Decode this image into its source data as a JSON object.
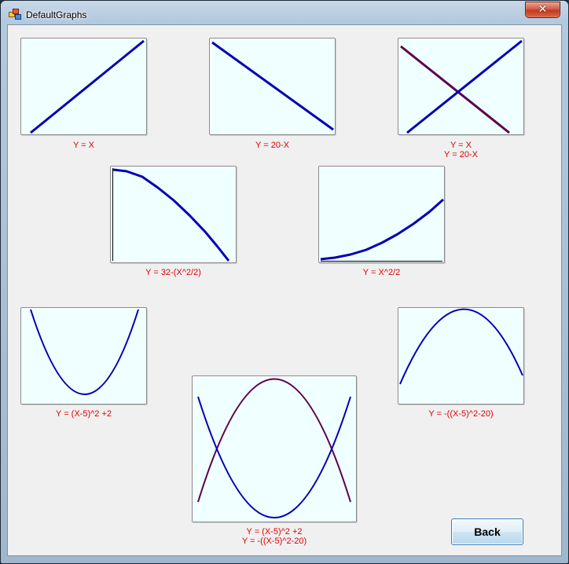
{
  "window": {
    "title": "DefaultGraphs",
    "close_symbol": "✕"
  },
  "colors": {
    "line_blue": "#0000b4",
    "line_purple": "#5a0050",
    "caption_red": "#e00000",
    "graph_bg": "#f0ffff"
  },
  "graphs": [
    {
      "id": "g1",
      "caption": [
        "Y = X"
      ]
    },
    {
      "id": "g2",
      "caption": [
        "Y = 20-X"
      ]
    },
    {
      "id": "g3",
      "caption": [
        "Y = X",
        "Y = 20-X"
      ]
    },
    {
      "id": "g4",
      "caption": [
        "Y = 32-(X^2/2)"
      ]
    },
    {
      "id": "g5",
      "caption": [
        "Y = X^2/2"
      ]
    },
    {
      "id": "g6",
      "caption": [
        "Y = (X-5)^2 +2"
      ]
    },
    {
      "id": "g7",
      "caption": [
        "Y = -((X-5)^2-20)"
      ]
    },
    {
      "id": "g8",
      "caption": [
        "Y = (X-5)^2 +2",
        "Y = -((X-5)^2-20)"
      ]
    }
  ],
  "buttons": {
    "back_label": "Back"
  }
}
